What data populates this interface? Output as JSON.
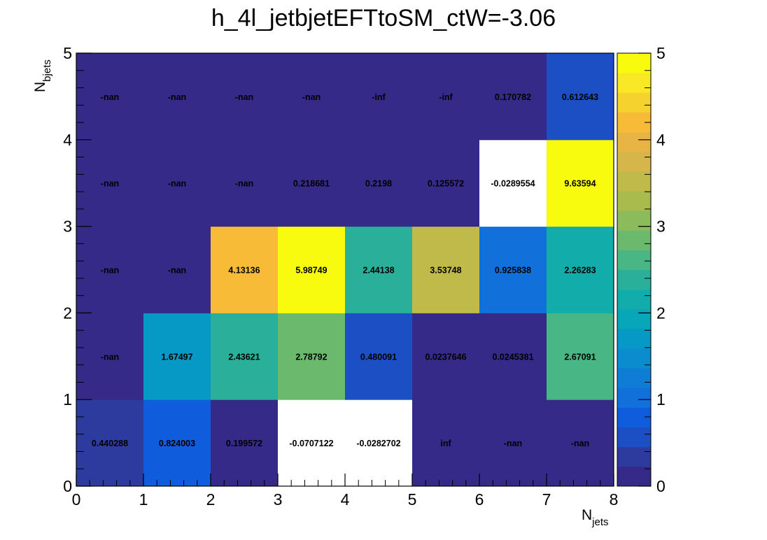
{
  "chart_data": {
    "type": "heatmap",
    "title": "h_4l_jetbjetEFTtoSM_ctW=-3.06",
    "xlabel": {
      "main": "N",
      "sub": "jets"
    },
    "ylabel": {
      "main": "N",
      "sub": "bjets"
    },
    "x_ticks": [
      "0",
      "1",
      "2",
      "3",
      "4",
      "5",
      "6",
      "7",
      "8"
    ],
    "y_ticks": [
      "0",
      "1",
      "2",
      "3",
      "4",
      "5"
    ],
    "xlim": [
      0,
      8
    ],
    "ylim": [
      0,
      5
    ],
    "zlim": [
      0,
      5
    ],
    "colorbar_ticks": [
      "0",
      "1",
      "2",
      "3",
      "4",
      "5"
    ],
    "rows": [
      {
        "y_bin": "0-1",
        "cells": [
          {
            "label": "0.440288",
            "value": 0.440288
          },
          {
            "label": "0.824003",
            "value": 0.824003
          },
          {
            "label": "0.199572",
            "value": 0.199572
          },
          {
            "label": "-0.0707122",
            "value": -0.0707122
          },
          {
            "label": "-0.0282702",
            "value": -0.0282702
          },
          {
            "label": "inf",
            "value": "inf"
          },
          {
            "label": "-nan",
            "value": "nan"
          },
          {
            "label": "-nan",
            "value": "nan"
          }
        ]
      },
      {
        "y_bin": "1-2",
        "cells": [
          {
            "label": "-nan",
            "value": "nan"
          },
          {
            "label": "1.67497",
            "value": 1.67497
          },
          {
            "label": "2.43621",
            "value": 2.43621
          },
          {
            "label": "2.78792",
            "value": 2.78792
          },
          {
            "label": "0.480091",
            "value": 0.480091
          },
          {
            "label": "0.0237646",
            "value": 0.0237646
          },
          {
            "label": "0.0245381",
            "value": 0.0245381
          },
          {
            "label": "2.67091",
            "value": 2.67091
          }
        ]
      },
      {
        "y_bin": "2-3",
        "cells": [
          {
            "label": "-nan",
            "value": "nan"
          },
          {
            "label": "-nan",
            "value": "nan"
          },
          {
            "label": "4.13136",
            "value": 4.13136
          },
          {
            "label": "5.98749",
            "value": 5.98749
          },
          {
            "label": "2.44138",
            "value": 2.44138
          },
          {
            "label": "3.53748",
            "value": 3.53748
          },
          {
            "label": "0.925838",
            "value": 0.925838
          },
          {
            "label": "2.26283",
            "value": 2.26283
          }
        ]
      },
      {
        "y_bin": "3-4",
        "cells": [
          {
            "label": "-nan",
            "value": "nan"
          },
          {
            "label": "-nan",
            "value": "nan"
          },
          {
            "label": "-nan",
            "value": "nan"
          },
          {
            "label": "0.218681",
            "value": 0.218681
          },
          {
            "label": "0.2198",
            "value": 0.2198
          },
          {
            "label": "0.125572",
            "value": 0.125572
          },
          {
            "label": "-0.0289554",
            "value": -0.0289554
          },
          {
            "label": "9.63594",
            "value": 9.63594
          }
        ]
      },
      {
        "y_bin": "4-5",
        "cells": [
          {
            "label": "-nan",
            "value": "nan"
          },
          {
            "label": "-nan",
            "value": "nan"
          },
          {
            "label": "-nan",
            "value": "nan"
          },
          {
            "label": "-nan",
            "value": "nan"
          },
          {
            "label": "-inf",
            "value": "-inf"
          },
          {
            "label": "-inf",
            "value": "-inf"
          },
          {
            "label": "0.170782",
            "value": 0.170782
          },
          {
            "label": "0.612643",
            "value": 0.612643
          }
        ]
      }
    ],
    "colors": {
      "background": "#ffffff",
      "below_min": "#ffffff",
      "palette": [
        "#352a87",
        "#2e3b9e",
        "#1d4fc4",
        "#0f5cdd",
        "#1170d9",
        "#0f7dd5",
        "#0a8ccf",
        "#0799c6",
        "#07a6b8",
        "#12adab",
        "#2ab09a",
        "#48b685",
        "#6ab96d",
        "#8bbb5a",
        "#a8bb4c",
        "#c0ba4a",
        "#d6b64b",
        "#e8b545",
        "#f8bb37",
        "#f5d22e",
        "#f8e825",
        "#f9fb0e"
      ]
    }
  }
}
